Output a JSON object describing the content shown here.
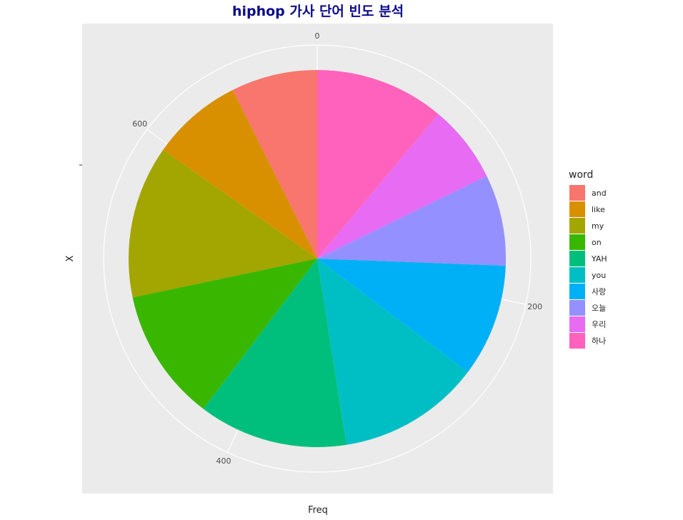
{
  "chart_data": {
    "type": "pie",
    "title": "hiphop 가사 단어 빈도 분석",
    "xlabel": "Freq",
    "ylabel": "X",
    "legend_title": "word",
    "legend_position": "right",
    "grid": true,
    "theta_ticks": [
      "0",
      "200",
      "400",
      "600"
    ],
    "slices": [
      {
        "word": "and",
        "value": 52,
        "color": "#F8766D"
      },
      {
        "word": "like",
        "value": 55,
        "color": "#D89000"
      },
      {
        "word": "my",
        "value": 92,
        "color": "#A3A500"
      },
      {
        "word": "on",
        "value": 80,
        "color": "#39B600"
      },
      {
        "word": "YAH",
        "value": 90,
        "color": "#00BF7D"
      },
      {
        "word": "you",
        "value": 86,
        "color": "#00BFC4"
      },
      {
        "word": "사랑",
        "value": 68,
        "color": "#00B0F6"
      },
      {
        "word": "오늘",
        "value": 55,
        "color": "#9590FF"
      },
      {
        "word": "우리",
        "value": 47,
        "color": "#E76BF3"
      },
      {
        "word": "하나",
        "value": 78,
        "color": "#FF62BC"
      }
    ]
  }
}
